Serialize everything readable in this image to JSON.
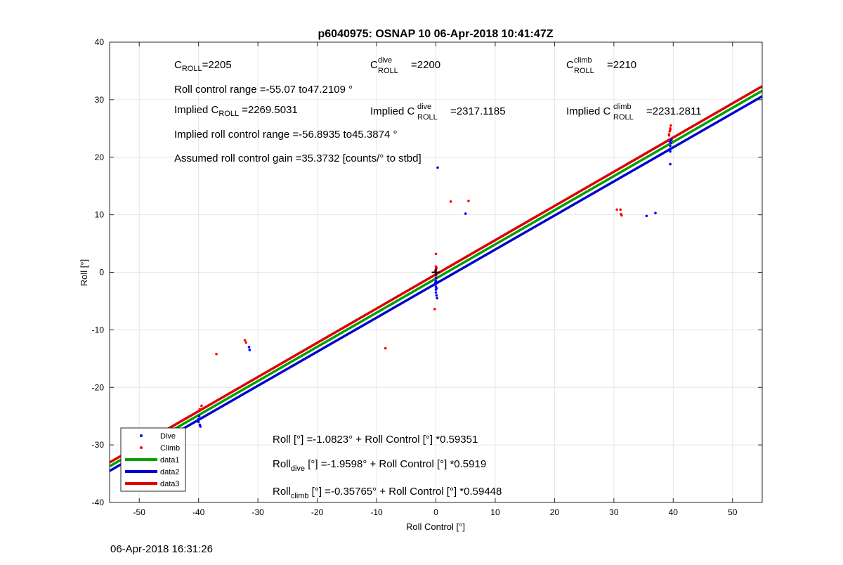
{
  "chart_data": {
    "type": "scatter",
    "title": "p6040975: OSNAP 10 06-Apr-2018 10:41:47Z",
    "xlabel": "Roll Control [°]",
    "ylabel": "Roll [°]",
    "xlim": [
      -55,
      55
    ],
    "ylim": [
      -40,
      40
    ],
    "xticks": [
      -50,
      -40,
      -30,
      -20,
      -10,
      0,
      10,
      20,
      30,
      40,
      50
    ],
    "yticks": [
      -40,
      -30,
      -20,
      -10,
      0,
      10,
      20,
      30,
      40
    ],
    "grid": true,
    "legend_position": "bottom-left",
    "colors": {
      "dive": "#0000ff",
      "climb": "#ff0000",
      "data1": "#00a000",
      "data2": "#0000cc",
      "data3": "#dd0000"
    },
    "series": [
      {
        "name": "Dive",
        "kind": "points",
        "color": "#0000ff",
        "points": [
          [
            -50,
            -28.5
          ],
          [
            -40,
            -25.5
          ],
          [
            -40,
            -26
          ],
          [
            -39.8,
            -26.5
          ],
          [
            -39.7,
            -26.8
          ],
          [
            -39.9,
            -25
          ],
          [
            -31.5,
            -13
          ],
          [
            -31.4,
            -13.5
          ],
          [
            5,
            10.2
          ],
          [
            0.3,
            18.2
          ],
          [
            0,
            -1
          ],
          [
            0,
            -1.5
          ],
          [
            0,
            -2
          ],
          [
            0,
            -2.5
          ],
          [
            0,
            -3
          ],
          [
            0,
            -3.5
          ],
          [
            0.1,
            -4
          ],
          [
            0.2,
            -4.5
          ],
          [
            -0.1,
            -1.8
          ],
          [
            0.1,
            -2.8
          ],
          [
            0,
            -0.5
          ],
          [
            35.5,
            9.8
          ],
          [
            37,
            10.3
          ],
          [
            39.5,
            18.8
          ],
          [
            39.5,
            21
          ],
          [
            39.5,
            21.5
          ],
          [
            39.5,
            22
          ],
          [
            39.6,
            22.5
          ],
          [
            39.7,
            23
          ],
          [
            39.4,
            22.8
          ]
        ]
      },
      {
        "name": "Climb",
        "kind": "points",
        "color": "#ff0000",
        "points": [
          [
            -37,
            -14.2
          ],
          [
            -32.2,
            -11.8
          ],
          [
            -32,
            -12.2
          ],
          [
            -8.5,
            -13.2
          ],
          [
            2.5,
            12.3
          ],
          [
            5.5,
            12.4
          ],
          [
            -0.2,
            -6.4
          ],
          [
            0,
            3.2
          ],
          [
            0,
            1
          ],
          [
            0,
            0.5
          ],
          [
            0,
            0
          ],
          [
            0,
            -0.5
          ],
          [
            0.1,
            0.8
          ],
          [
            -0.1,
            0.3
          ],
          [
            30.5,
            10.9
          ],
          [
            31.1,
            10.9
          ],
          [
            31.2,
            10.1
          ],
          [
            31.3,
            9.9
          ],
          [
            39.2,
            23
          ],
          [
            39.3,
            24
          ],
          [
            39.4,
            24.5
          ],
          [
            39.5,
            25
          ],
          [
            39.6,
            25.5
          ],
          [
            39.5,
            24.8
          ],
          [
            39.3,
            23.8
          ],
          [
            -39.8,
            -23.8
          ],
          [
            -39.5,
            -23.2
          ]
        ]
      },
      {
        "name": "data1",
        "kind": "line",
        "color": "#00a000",
        "intercept": -1.0823,
        "slope": 0.59351
      },
      {
        "name": "data2",
        "kind": "line",
        "color": "#0000cc",
        "intercept": -1.9598,
        "slope": 0.5919
      },
      {
        "name": "data3",
        "kind": "line",
        "color": "#dd0000",
        "intercept": -0.35765,
        "slope": 0.59448
      }
    ],
    "center_marker": [
      0,
      0
    ],
    "annotations": {
      "c_roll_base": "C",
      "c_roll_sub": "ROLL",
      "c_roll_value": "=2205",
      "c_dive_base": "C",
      "c_dive_sub": "ROLL",
      "c_dive_sup": "dive",
      "c_dive_value": "=2200",
      "c_climb_base": "C",
      "c_climb_sub": "ROLL",
      "c_climb_sup": "climb",
      "c_climb_value": "=2210",
      "range_text": "Roll control range =-55.07 to47.2109 °",
      "implied_c_prefix": "Implied C",
      "implied_c_sub": "ROLL",
      "implied_c_value": "=2269.5031",
      "implied_dive_prefix": "Implied C",
      "implied_dive_sup": "dive",
      "implied_dive_sub": "ROLL",
      "implied_dive_value": "=2317.1185",
      "implied_climb_prefix": "Implied C",
      "implied_climb_sup": "climb",
      "implied_climb_sub": "ROLL",
      "implied_climb_value": "=2231.2811",
      "implied_range_text": "Implied roll control range =-56.8935 to45.3874 °",
      "gain_text": "Assumed roll control gain =35.3732 [counts/° to stbd]",
      "fit_all_prefix": "Roll [°] =-1.0823° + Roll Control [°] *0.59351",
      "fit_dive_base": "Roll",
      "fit_dive_sub": "dive",
      "fit_dive_rest": " [°] =-1.9598° + Roll Control [°] *0.5919",
      "fit_climb_base": "Roll",
      "fit_climb_sub": "climb",
      "fit_climb_rest": " [°] =-0.35765° + Roll Control [°] *0.59448"
    }
  },
  "footer": {
    "timestamp": "06-Apr-2018 16:31:26"
  }
}
